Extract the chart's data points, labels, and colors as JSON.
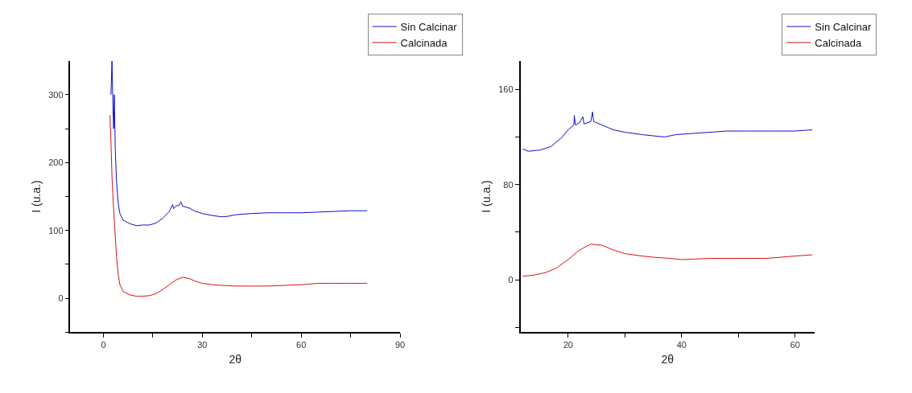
{
  "chart_data": [
    {
      "type": "line",
      "xlabel": "2θ",
      "ylabel": "I (u.a.)",
      "xlim": [
        -10,
        90
      ],
      "ylim": [
        -50,
        350
      ],
      "xticks": [
        0,
        {
          "value": 15,
          "label": null
        },
        30,
        {
          "value": 45,
          "label": null
        },
        60,
        {
          "value": 75,
          "label": null
        },
        90
      ],
      "yticks": [
        {
          "value": -50,
          "label": null
        },
        0,
        {
          "value": 50,
          "label": null
        },
        100,
        {
          "value": 150,
          "label": null
        },
        200,
        {
          "value": 250,
          "label": null
        },
        300
      ],
      "legend": "top right",
      "marker": "none",
      "line_style": "solid",
      "series": [
        {
          "name": "Sin Calcinar",
          "color": "#1010c8",
          "x": [
            2.3,
            2.6,
            2.9,
            3.1,
            3.3,
            3.6,
            4,
            4.5,
            5,
            6,
            8,
            10,
            12,
            14,
            16,
            18,
            20,
            21,
            21.3,
            22,
            23,
            23.5,
            24,
            26,
            28,
            30,
            33,
            36,
            38,
            40,
            45,
            50,
            55,
            60,
            65,
            70,
            75,
            80
          ],
          "values": [
            300,
            350,
            280,
            250,
            300,
            220,
            170,
            140,
            125,
            115,
            110,
            107,
            108,
            108,
            111,
            118,
            128,
            138,
            132,
            136,
            137,
            142,
            136,
            133,
            128,
            125,
            122,
            120,
            121,
            123,
            125,
            126,
            126,
            126,
            127,
            128,
            129,
            129
          ]
        },
        {
          "name": "Calcinada",
          "color": "#dd1111",
          "x": [
            2,
            2.3,
            2.6,
            3,
            3.5,
            4,
            4.5,
            5,
            6,
            8,
            10,
            12,
            14,
            16,
            18,
            20,
            22,
            24,
            26,
            28,
            30,
            33,
            36,
            40,
            45,
            50,
            55,
            60,
            65,
            70,
            75,
            80
          ],
          "values": [
            270,
            230,
            180,
            140,
            100,
            60,
            35,
            20,
            10,
            5,
            3,
            3,
            4,
            7,
            13,
            20,
            27,
            31,
            29,
            25,
            22,
            20,
            19,
            18,
            18,
            18,
            19,
            20,
            22,
            22,
            22,
            22
          ]
        }
      ]
    },
    {
      "type": "line",
      "xlabel": "2θ",
      "ylabel": "I (u.a.)",
      "xlim": [
        11.6,
        63.4
      ],
      "ylim": [
        -44,
        184
      ],
      "xticks": [
        20,
        {
          "value": 30,
          "label": null
        },
        40,
        {
          "value": 50,
          "label": null
        },
        60
      ],
      "yticks": [
        {
          "value": -40,
          "label": null
        },
        0,
        {
          "value": 40,
          "label": null
        },
        80,
        {
          "value": 120,
          "label": null
        },
        160
      ],
      "legend": "top right",
      "marker": "none",
      "line_style": "solid",
      "series": [
        {
          "name": "Sin Calcinar",
          "color": "#1010c8",
          "x": [
            12,
            13,
            15,
            17,
            19,
            20,
            21,
            21.1,
            21.3,
            22,
            22.6,
            22.8,
            24,
            24.3,
            24.5,
            26,
            27,
            28,
            30,
            33,
            35,
            37,
            39,
            42,
            45,
            48,
            52,
            56,
            60,
            63
          ],
          "values": [
            110,
            108,
            109,
            112,
            120,
            126,
            130,
            138,
            130,
            132,
            137,
            131,
            133,
            141,
            133,
            130,
            128,
            126,
            124,
            122,
            121,
            120,
            122,
            123,
            124,
            125,
            125,
            125,
            125,
            126
          ]
        },
        {
          "name": "Calcinada",
          "color": "#dd1111",
          "x": [
            12,
            14,
            16,
            18,
            20,
            22,
            24,
            26,
            28,
            30,
            33,
            35,
            38,
            40,
            45,
            50,
            55,
            60,
            63
          ],
          "values": [
            3,
            4,
            6,
            10,
            17,
            25,
            30,
            29,
            25,
            22,
            20,
            19,
            18,
            17,
            18,
            18,
            18,
            20,
            21
          ]
        }
      ]
    }
  ]
}
